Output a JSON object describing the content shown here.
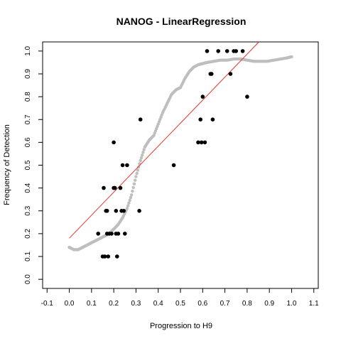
{
  "chart_data": {
    "type": "scatter",
    "title": "NANOG - LinearRegression",
    "xlabel": "Progression to H9",
    "ylabel": "Frequency of Detection",
    "xlim": [
      -0.12,
      1.12
    ],
    "ylim": [
      -0.04,
      1.04
    ],
    "xticks": [
      "-0.1",
      "0.0",
      "0.1",
      "0.2",
      "0.3",
      "0.4",
      "0.5",
      "0.6",
      "0.7",
      "0.8",
      "0.9",
      "1.0",
      "1.1"
    ],
    "xtick_values": [
      -0.1,
      0.0,
      0.1,
      0.2,
      0.3,
      0.4,
      0.5,
      0.6,
      0.7,
      0.8,
      0.9,
      1.0,
      1.1
    ],
    "yticks": [
      "0.0",
      "0.1",
      "0.2",
      "0.3",
      "0.4",
      "0.5",
      "0.6",
      "0.7",
      "0.8",
      "0.9",
      "1.0"
    ],
    "ytick_values": [
      0.0,
      0.1,
      0.2,
      0.3,
      0.4,
      0.5,
      0.6,
      0.7,
      0.8,
      0.9,
      1.0
    ],
    "grid": false,
    "colors": {
      "observed": "#000000",
      "smoothed": "#bebebe",
      "fit": "#e8352a"
    },
    "fit_line": {
      "x": [
        0.0,
        0.853
      ],
      "y": [
        0.18,
        1.04
      ]
    },
    "observed": {
      "x": [
        0.13,
        0.15,
        0.155,
        0.16,
        0.165,
        0.17,
        0.17,
        0.175,
        0.18,
        0.19,
        0.2,
        0.2,
        0.205,
        0.21,
        0.21,
        0.215,
        0.22,
        0.23,
        0.235,
        0.24,
        0.245,
        0.25,
        0.26,
        0.315,
        0.32,
        0.47,
        0.58,
        0.59,
        0.595,
        0.6,
        0.61,
        0.62,
        0.635,
        0.64,
        0.645,
        0.67,
        0.71,
        0.725,
        0.74,
        0.75,
        0.78,
        0.8
      ],
      "y": [
        0.2,
        0.1,
        0.4,
        0.1,
        0.3,
        0.3,
        0.2,
        0.1,
        0.2,
        0.2,
        0.6,
        0.4,
        0.4,
        0.3,
        0.2,
        0.1,
        0.2,
        0.4,
        0.3,
        0.5,
        0.3,
        0.2,
        0.5,
        0.3,
        0.7,
        0.5,
        0.6,
        0.7,
        0.6,
        0.8,
        0.6,
        1.0,
        0.9,
        0.9,
        0.7,
        1.0,
        1.0,
        0.9,
        1.0,
        1.0,
        1.0,
        0.8
      ]
    },
    "smoothed_curve": {
      "x": [
        0.0,
        0.02,
        0.04,
        0.06,
        0.08,
        0.1,
        0.12,
        0.14,
        0.16,
        0.18,
        0.2,
        0.22,
        0.24,
        0.26,
        0.28,
        0.3,
        0.32,
        0.34,
        0.36,
        0.38,
        0.4,
        0.42,
        0.44,
        0.46,
        0.48,
        0.5,
        0.52,
        0.54,
        0.56,
        0.58,
        0.6,
        0.62,
        0.65,
        0.68,
        0.71,
        0.74,
        0.77,
        0.8,
        0.83,
        0.86,
        0.89,
        0.92,
        0.95,
        0.98,
        1.0
      ],
      "y": [
        0.14,
        0.13,
        0.13,
        0.14,
        0.15,
        0.16,
        0.17,
        0.18,
        0.19,
        0.2,
        0.22,
        0.24,
        0.27,
        0.31,
        0.37,
        0.45,
        0.52,
        0.58,
        0.61,
        0.63,
        0.68,
        0.73,
        0.77,
        0.81,
        0.83,
        0.84,
        0.88,
        0.91,
        0.93,
        0.94,
        0.945,
        0.95,
        0.955,
        0.96,
        0.96,
        0.965,
        0.965,
        0.96,
        0.955,
        0.955,
        0.955,
        0.96,
        0.965,
        0.97,
        0.975
      ]
    }
  }
}
